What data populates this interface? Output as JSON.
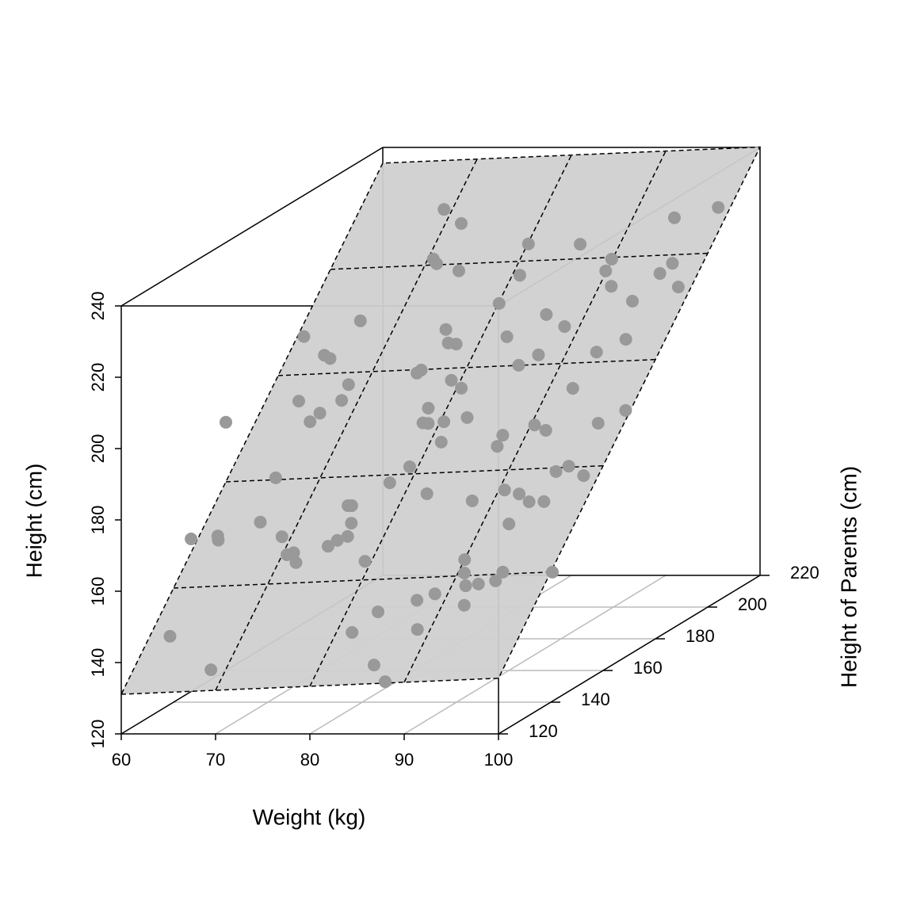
{
  "chart_data": {
    "type": "scatter3d",
    "x_label": "Weight (kg)",
    "y_label": "Height of Parents (cm)",
    "z_label": "Height (cm)",
    "xlim": [
      60,
      100
    ],
    "xticks": [
      60,
      70,
      80,
      90,
      100
    ],
    "ylim": [
      120,
      220
    ],
    "yticks": [
      120,
      140,
      160,
      180,
      200,
      220
    ],
    "zlim": [
      120,
      240
    ],
    "zticks": [
      120,
      140,
      160,
      180,
      200,
      220,
      240
    ],
    "point_color": "#999999",
    "plane": {
      "intercept": -1.05,
      "x_coef": 0.1125,
      "y_coef": 1.045,
      "color": "#d0d0d0"
    },
    "x": [
      69.1,
      71.7,
      98.7,
      94.5,
      80.1,
      85.7,
      70.6,
      71.2,
      74.0,
      89.9,
      96.7,
      95.9,
      89.9,
      80.8,
      91.3,
      98.6,
      94.4,
      80.1,
      85.8,
      88.4,
      66.0,
      60.7,
      75.7,
      76.7,
      77.6,
      82.7,
      95.7,
      93.2,
      63.9,
      64.7,
      87.1,
      85.5,
      74.9,
      75.2,
      79.0,
      80.5,
      68.1,
      92.6,
      63.6,
      68.2,
      66.5,
      65.9,
      78.0,
      82.7,
      78.2,
      78.8,
      80.4,
      60,
      90.4,
      91.9,
      97.2,
      99.5,
      87.5,
      81.2,
      87.5,
      79.1,
      96.3,
      95.2,
      98.4,
      77.8,
      65.2,
      90.6,
      82.4,
      92.4,
      87.7,
      93.9,
      95.5,
      74.5,
      74.9,
      65.9,
      75.8,
      92.9,
      60,
      62.0,
      62.3,
      69.0,
      76.1,
      75.2,
      74.5,
      71.1,
      70.5,
      71.9,
      79.3,
      90.0,
      90.7,
      94.8,
      100,
      94.5,
      92.8,
      91.5,
      88.6,
      87.0,
      92.4,
      83.4,
      81.7,
      88.6,
      62.2,
      85.8,
      68.4,
      87.9
    ],
    "y": [
      210.6,
      207.8,
      208.7,
      207.1,
      203.2,
      202.8,
      201.1,
      200.2,
      198.6,
      199.7,
      198.4,
      196.5,
      197.4,
      197.4,
      194.5,
      193.8,
      191.4,
      192.0,
      189.5,
      187.1,
      189.8,
      187.3,
      187.5,
      184.8,
      184.6,
      185.6,
      184.2,
      182.0,
      183.6,
      182.9,
      181.8,
      180.0,
      179.3,
      179.9,
      177.7,
      176.1,
      177.7,
      175.1,
      174.9,
      174.7,
      172.5,
      170.9,
      172.5,
      170.4,
      169.7,
      169.6,
      169.8,
      160,
      168.4,
      167.3,
      168.2,
      170.4,
      166.7,
      165.9,
      164.6,
      161.4,
      160.2,
      159.3,
      158.3,
      158.5,
      160.3,
      156.2,
      156.1,
      155.3,
      154.3,
      153.7,
      153.6,
      154.4,
      154.4,
      151.9,
      151.0,
      149.6,
      146.7,
      149.7,
      148.8,
      149.0,
      148.5,
      147.8,
      146.8,
      145.9,
      145.5,
      143.9,
      143.6,
      143.1,
      140.5,
      140.4,
      140.6,
      138.7,
      138.3,
      138.1,
      136.8,
      135.7,
      134.3,
      133.8,
      130.0,
      130.1,
      130.7,
      123.6,
      124.0,
      120.3
    ],
    "z": [
      226.8,
      224.1,
      228.2,
      226.0,
      220.4,
      220.5,
      217.1,
      216.2,
      214.9,
      217.7,
      217.1,
      215.1,
      215.4,
      214.2,
      212.4,
      212.5,
      209.6,
      208.7,
      206.7,
      204.4,
      204.8,
      201.5,
      203.4,
      200.8,
      200.6,
      202.2,
      202.1,
      199.5,
      197.9,
      197.3,
      198.8,
      196.7,
      194.8,
      195.4,
      193.5,
      192.0,
      192.3,
      192.4,
      188.9,
      189.2,
      186.6,
      184.9,
      188.0,
      186.3,
      185.1,
      185.0,
      185.4,
      189.6,
      185.1,
      184.1,
      185.7,
      188.3,
      183.0,
      181.4,
      180.8,
      176.5,
      177.2,
      176.1,
      175.4,
      173.3,
      173.9,
      172.3,
      171.3,
      171.6,
      170.1,
      170.1,
      170.2,
      168.7,
      168.7,
      165.2,
      165.3,
      165.7,
      162.8,
      162.3,
      161.5,
      162.4,
      162.7,
      161.9,
      160.7,
      159.3,
      158.9,
      157.4,
      157.9,
      158.6,
      156.0,
      156.3,
      156.2,
      154.6,
      153.9,
      153.5,
      151.8,
      150.5,
      149.7,
      148.1,
      144.0,
      144.8,
      142.6,
      137.7,
      136.2,
      134.5
    ]
  }
}
